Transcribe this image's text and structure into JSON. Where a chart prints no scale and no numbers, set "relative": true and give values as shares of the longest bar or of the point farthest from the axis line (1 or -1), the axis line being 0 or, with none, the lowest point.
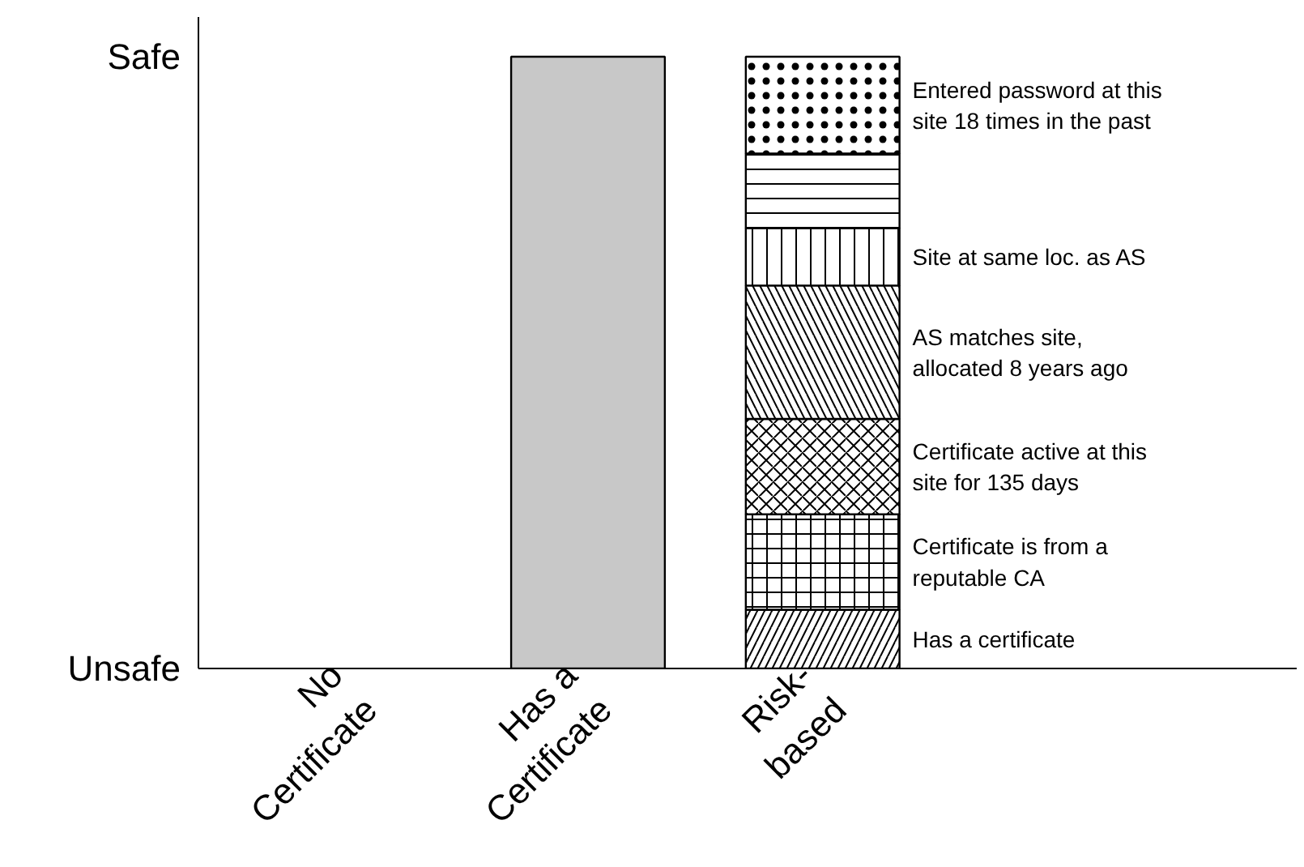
{
  "chart_data": {
    "type": "bar",
    "stacked": true,
    "relative": true,
    "categories": [
      "No\nCertificate",
      "Has a\nCertificate",
      "Risk-\nbased"
    ],
    "series": [
      {
        "color": "#c8c8c8",
        "values": [
          null,
          1,
          null
        ]
      },
      {
        "name": "Has a certificate",
        "color": "#ffffff",
        "values": [
          null,
          null,
          0.096
        ]
      },
      {
        "name": "Certificate is from a\nreputable CA",
        "color": "#ffffff",
        "values": [
          null,
          null,
          0.156
        ]
      },
      {
        "name": "Certificate active at this\nsite for 135 days",
        "color": "#ffffff",
        "values": [
          null,
          null,
          0.156
        ]
      },
      {
        "name": "AS matches site,\nallocated 8 years ago",
        "color": "#ffffff",
        "values": [
          null,
          null,
          0.218
        ]
      },
      {
        "name": "Site at same loc. as AS",
        "color": "#ffffff",
        "values": [
          null,
          null,
          0.094
        ]
      },
      {
        "color": "#ffffff",
        "values": [
          null,
          null,
          0.122
        ]
      },
      {
        "name": "Entered password at this\nsite 18 times in the past",
        "color": "#ffffff",
        "values": [
          null,
          null,
          0.158
        ]
      }
    ],
    "annotations": [
      "Safe",
      "Unsafe"
    ],
    "legend": false,
    "grid": false
  }
}
